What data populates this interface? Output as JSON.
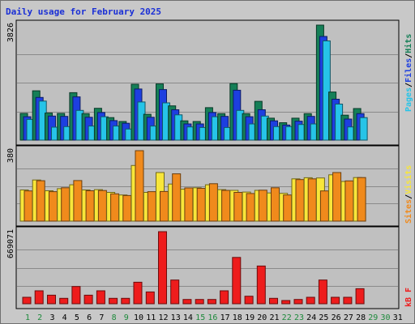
{
  "title": "Daily usage for February 2025",
  "colors": {
    "background": "#c8c8c8",
    "plot": "#c0c0c0",
    "hits": "#157f57",
    "files": "#1d3fe0",
    "pages": "#26c4e8",
    "visits": "#f8e63a",
    "sites": "#f08a1c",
    "kbf": "#ee1c1c",
    "weekend": "#1e8a3c",
    "weekday": "#000000"
  },
  "chart_data": [
    {
      "type": "bar",
      "categories": [
        "1",
        "2",
        "3",
        "4",
        "5",
        "6",
        "7",
        "8",
        "9",
        "10",
        "11",
        "12",
        "13",
        "14",
        "15",
        "16",
        "17",
        "18",
        "19",
        "20",
        "21",
        "22",
        "23",
        "24",
        "25",
        "26",
        "27",
        "28",
        "29",
        "30",
        "31"
      ],
      "weekend_days": [
        "1",
        "2",
        "8",
        "9",
        "15",
        "16",
        "22",
        "23",
        "29",
        "30"
      ],
      "series": [
        {
          "name": "Hits",
          "values": [
            890,
            1640,
            900,
            890,
            1580,
            880,
            1060,
            750,
            620,
            1860,
            860,
            1870,
            1140,
            640,
            620,
            1080,
            880,
            1880,
            880,
            1290,
            730,
            580,
            730,
            880,
            3826,
            1600,
            830,
            1050,
            0,
            0,
            0
          ]
        },
        {
          "name": "Files",
          "values": [
            780,
            1420,
            800,
            790,
            1440,
            760,
            920,
            650,
            560,
            1700,
            760,
            1680,
            1010,
            540,
            540,
            920,
            790,
            1660,
            780,
            1010,
            640,
            500,
            630,
            790,
            3450,
            1360,
            700,
            880,
            0,
            0,
            0
          ]
        },
        {
          "name": "Pages",
          "values": [
            690,
            1300,
            430,
            450,
            990,
            470,
            780,
            470,
            370,
            1270,
            470,
            1240,
            840,
            440,
            420,
            780,
            420,
            990,
            540,
            800,
            450,
            450,
            520,
            540,
            3300,
            1200,
            440,
            750,
            0,
            0,
            0
          ]
        }
      ],
      "ytick": "3826",
      "ylim": [
        0,
        3826
      ],
      "right_labels": [
        "Pages",
        "Files",
        "Hits"
      ]
    },
    {
      "type": "bar",
      "categories": [
        "1",
        "2",
        "3",
        "4",
        "5",
        "6",
        "7",
        "8",
        "9",
        "10",
        "11",
        "12",
        "13",
        "14",
        "15",
        "16",
        "17",
        "18",
        "19",
        "20",
        "21",
        "22",
        "23",
        "24",
        "25",
        "26",
        "27",
        "28",
        "29",
        "30",
        "31"
      ],
      "series": [
        {
          "name": "Visits",
          "values": [
            168,
            222,
            164,
            175,
            196,
            168,
            170,
            155,
            141,
            300,
            155,
            262,
            200,
            172,
            180,
            196,
            170,
            166,
            157,
            166,
            152,
            150,
            228,
            234,
            233,
            250,
            214,
            235,
            0,
            0,
            0
          ]
        },
        {
          "name": "Sites",
          "values": [
            163,
            218,
            159,
            180,
            219,
            164,
            165,
            147,
            138,
            380,
            159,
            160,
            255,
            179,
            177,
            202,
            166,
            155,
            149,
            167,
            180,
            141,
            224,
            228,
            163,
            262,
            217,
            235,
            0,
            0,
            0
          ]
        }
      ],
      "ytick": "380",
      "ylim": [
        0,
        380
      ],
      "right_labels": [
        "Sites",
        "Visits"
      ]
    },
    {
      "type": "bar",
      "categories": [
        "1",
        "2",
        "3",
        "4",
        "5",
        "6",
        "7",
        "8",
        "9",
        "10",
        "11",
        "12",
        "13",
        "14",
        "15",
        "16",
        "17",
        "18",
        "19",
        "20",
        "21",
        "22",
        "23",
        "24",
        "25",
        "26",
        "27",
        "28",
        "29",
        "30",
        "31"
      ],
      "series": [
        {
          "name": "KB F",
          "values": [
            60000,
            120000,
            80000,
            50000,
            160000,
            80000,
            120000,
            50000,
            50000,
            200000,
            110000,
            669071,
            220000,
            40000,
            40000,
            40000,
            120000,
            430000,
            70000,
            350000,
            50000,
            30000,
            40000,
            60000,
            220000,
            60000,
            60000,
            140000,
            0,
            0,
            0
          ]
        }
      ],
      "ytick": "669071",
      "ylim": [
        0,
        669071
      ],
      "right_labels": [
        "kB F"
      ]
    }
  ]
}
